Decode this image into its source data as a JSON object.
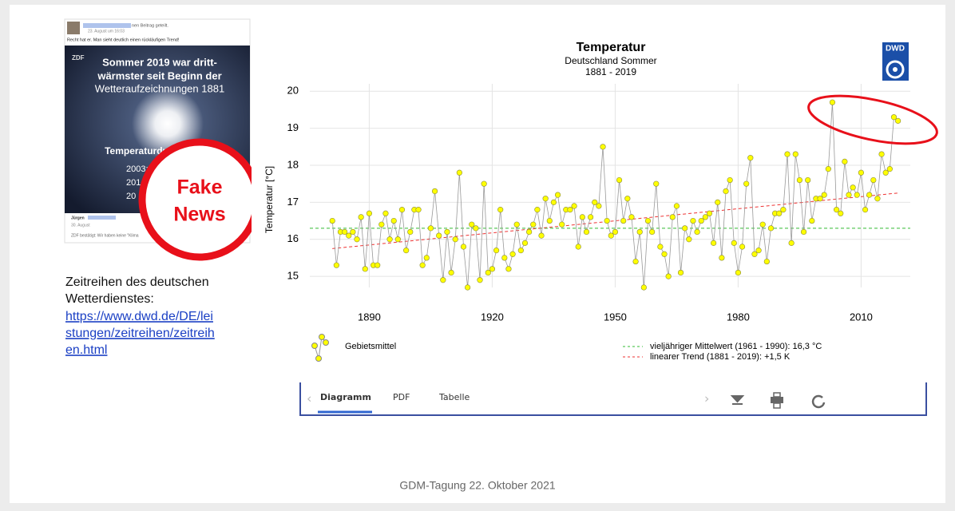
{
  "chart_data": {
    "type": "line",
    "title": "Temperatur",
    "subtitle": "Deutschland Sommer",
    "period": "1881 - 2019",
    "y_label": "Temperatur [°C]",
    "x": [
      1881,
      1882,
      1883,
      1884,
      1885,
      1886,
      1887,
      1888,
      1889,
      1890,
      1891,
      1892,
      1893,
      1894,
      1895,
      1896,
      1897,
      1898,
      1899,
      1900,
      1901,
      1902,
      1903,
      1904,
      1905,
      1906,
      1907,
      1908,
      1909,
      1910,
      1911,
      1912,
      1913,
      1914,
      1915,
      1916,
      1917,
      1918,
      1919,
      1920,
      1921,
      1922,
      1923,
      1924,
      1925,
      1926,
      1927,
      1928,
      1929,
      1930,
      1931,
      1932,
      1933,
      1934,
      1935,
      1936,
      1937,
      1938,
      1939,
      1940,
      1941,
      1942,
      1943,
      1944,
      1945,
      1946,
      1947,
      1948,
      1949,
      1950,
      1951,
      1952,
      1953,
      1954,
      1955,
      1956,
      1957,
      1958,
      1959,
      1960,
      1961,
      1962,
      1963,
      1964,
      1965,
      1966,
      1967,
      1968,
      1969,
      1970,
      1971,
      1972,
      1973,
      1974,
      1975,
      1976,
      1977,
      1978,
      1979,
      1980,
      1981,
      1982,
      1983,
      1984,
      1985,
      1986,
      1987,
      1988,
      1989,
      1990,
      1991,
      1992,
      1993,
      1994,
      1995,
      1996,
      1997,
      1998,
      1999,
      2000,
      2001,
      2002,
      2003,
      2004,
      2005,
      2006,
      2007,
      2008,
      2009,
      2010,
      2011,
      2012,
      2013,
      2014,
      2015,
      2016,
      2017,
      2018,
      2019
    ],
    "series": [
      {
        "name": "Gebietsmittel",
        "color": "#ffff00",
        "line_color": "#999999",
        "values": [
          16.5,
          15.3,
          16.2,
          16.2,
          16.1,
          16.2,
          16.0,
          16.6,
          15.2,
          16.7,
          15.3,
          15.3,
          16.4,
          16.7,
          16.0,
          16.5,
          16.0,
          16.8,
          15.7,
          16.2,
          16.8,
          16.8,
          15.3,
          15.5,
          16.3,
          17.3,
          16.1,
          14.9,
          16.2,
          15.1,
          16.0,
          17.8,
          15.8,
          14.7,
          16.4,
          16.3,
          14.9,
          17.5,
          15.1,
          15.2,
          15.7,
          16.8,
          15.5,
          15.2,
          15.6,
          16.4,
          15.7,
          15.9,
          16.2,
          16.4,
          16.8,
          16.1,
          17.1,
          16.5,
          17.0,
          17.2,
          16.4,
          16.8,
          16.8,
          16.9,
          15.8,
          16.6,
          16.2,
          16.6,
          17.0,
          16.9,
          18.5,
          16.5,
          16.1,
          16.2,
          17.6,
          16.5,
          17.1,
          16.6,
          15.4,
          16.2,
          14.7,
          16.5,
          16.2,
          17.5,
          15.8,
          15.6,
          15.0,
          16.6,
          16.9,
          15.1,
          16.3,
          16.0,
          16.5,
          16.2,
          16.5,
          16.6,
          16.7,
          15.9,
          17.0,
          15.5,
          17.3,
          17.6,
          15.9,
          15.1,
          15.8,
          17.5,
          18.2,
          15.6,
          15.7,
          16.4,
          15.4,
          16.3,
          16.7,
          16.7,
          16.8,
          18.3,
          15.9,
          18.3,
          17.6,
          16.2,
          17.6,
          16.5,
          17.1,
          17.1,
          17.2,
          17.9,
          19.7,
          16.8,
          16.7,
          18.1,
          17.2,
          17.4,
          17.2,
          17.8,
          16.8,
          17.2,
          17.6,
          17.1,
          18.3,
          17.8,
          17.9,
          19.3,
          19.2
        ]
      }
    ],
    "mean": {
      "name": "vieljähriger Mittelwert (1961 - 1990): 16,3 °C",
      "value": 16.3,
      "color": "#33bb33"
    },
    "trend": {
      "name": "linearer Trend (1881 - 2019): +1,5 K",
      "x": [
        1881,
        2019
      ],
      "values": [
        15.75,
        17.25
      ],
      "color": "#ee3333"
    },
    "xlim": [
      1875.5,
      2022
    ],
    "ylim": [
      14.7,
      20.2
    ],
    "xticks": [
      1890,
      1920,
      1950,
      1980,
      2010
    ],
    "yticks": [
      15,
      16,
      17,
      18,
      19,
      20
    ],
    "grid": true
  },
  "logo": "DWD",
  "post": {
    "header": "nen Beitrag geteilt.",
    "date": "23. August um 16:03",
    "comment": "Recht hat er. Man sieht deutlich einen rückläufigen Trend!",
    "image_lines": [
      "Sommer 2019 war dritt-",
      "wärmster seit Beginn der",
      "Wetteraufzeichnungen 1881"
    ],
    "image_subtitle": "Temperaturdurchschnitt",
    "image_years": [
      "2003: 1",
      "201",
      "20"
    ],
    "footer_name": "Jürgen",
    "footer_date": "30. August",
    "footer_text": "ZDF bestätigt: Wir haben keine \"Klima"
  },
  "stamp": [
    "Fake",
    "News"
  ],
  "note": {
    "lines": [
      "Zeitreihen des deutschen",
      "Wetterdienstes:"
    ],
    "link": [
      "https://www.dwd.de/DE/lei",
      "stungen/zeitreihen/zeitreih",
      "en.html"
    ]
  },
  "tabs": [
    "Diagramm",
    "PDF",
    "Tabelle"
  ],
  "footer": "GDM-Tagung 22. Oktober 2021"
}
